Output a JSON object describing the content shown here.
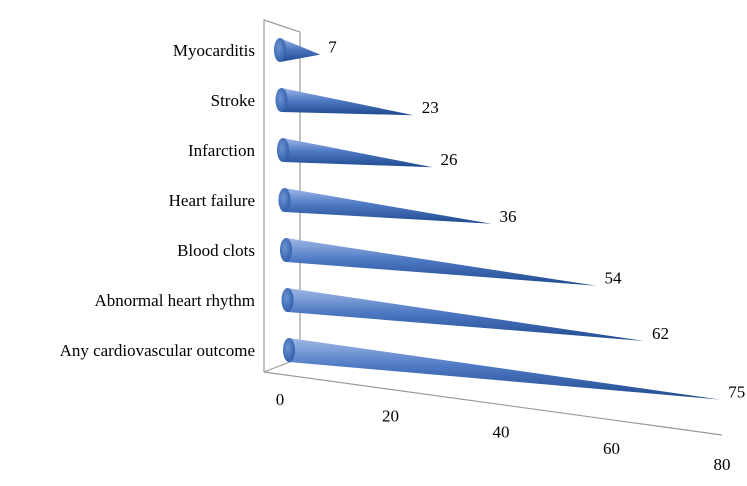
{
  "colors": {
    "cone_light": "#9fb8e6",
    "cone_mid": "#4f7ac4",
    "cone_dark": "#1f4a8f",
    "axis": "#9a9a9a"
  },
  "chart_data": {
    "type": "bar",
    "bar_shape": "3d-cone",
    "orientation": "horizontal",
    "title": "",
    "xlabel": "",
    "ylabel": "",
    "categories": [
      "Myocarditis",
      "Stroke",
      "Infarction",
      "Heart failure",
      "Blood clots",
      "Abnormal heart rhythm",
      "Any cardiovascular outcome"
    ],
    "values": [
      7,
      23,
      26,
      36,
      54,
      62,
      75
    ],
    "x_ticks": [
      "0",
      "20",
      "40",
      "60",
      "80"
    ],
    "xlim": [
      0,
      80
    ],
    "data_labels": true,
    "grid": false,
    "legend": "none"
  }
}
